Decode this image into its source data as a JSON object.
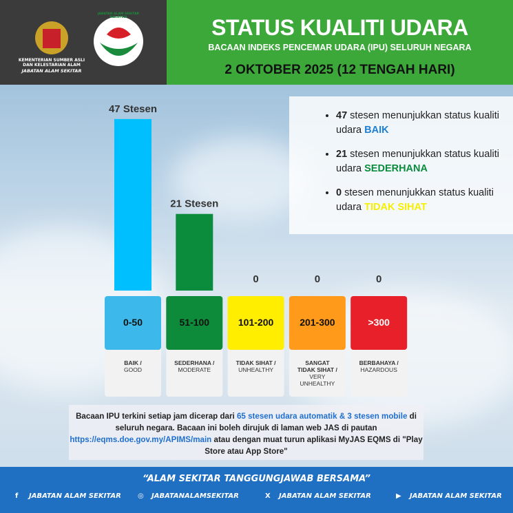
{
  "header": {
    "ministry": "KEMENTERIAN SUMBER ASLI DAN KELESTARIAN ALAM",
    "department": "JABATAN ALAM SEKITAR",
    "logo_text": "JABATAN ALAM SEKITAR MALAYSIA",
    "title": "STATUS KUALITI UDARA",
    "subtitle": "BACAAN INDEKS PENCEMAR UDARA (IPU) SELURUH NEGARA",
    "date": "2 OKTOBER 2025 (12 TENGAH HARI)"
  },
  "chart_data": {
    "type": "bar",
    "categories": [
      "0-50",
      "51-100",
      "101-200",
      "201-300",
      ">300"
    ],
    "values": [
      47,
      21,
      0,
      0,
      0
    ],
    "value_labels": [
      "47 Stesen",
      "21 Stesen",
      "0",
      "0",
      "0"
    ],
    "colors": [
      "#00bfff",
      "#0a8c3c",
      "#ffee00",
      "#ff9a1a",
      "#e8202a"
    ],
    "category_labels": [
      {
        "ms": "BAIK /",
        "en": "GOOD"
      },
      {
        "ms": "SEDERHANA /",
        "en": "MODERATE"
      },
      {
        "ms": "TIDAK SIHAT /",
        "en": "UNHEALTHY"
      },
      {
        "ms": "SANGAT TIDAK SIHAT /",
        "en": "VERY UNHEALTHY"
      },
      {
        "ms": "BERBAHAYA /",
        "en": "HAZARDOUS"
      }
    ],
    "card_colors": [
      "#3db8ea",
      "#0e8a3b",
      "#ffee00",
      "#ff9a1a",
      "#e8202a"
    ]
  },
  "summary": [
    {
      "count": 47,
      "text": "stesen menunjukkan status kualiti udara",
      "status": "BAIK",
      "color": "#1f7fd0"
    },
    {
      "count": 21,
      "text": "stesen menunjukkan status kualiti udara",
      "status": "SEDERHANA",
      "color": "#0a8c3c"
    },
    {
      "count": 0,
      "text": "stesen menunjukkan status kualiti udara",
      "status": "TIDAK SIHAT",
      "color": "#f5ef00"
    }
  ],
  "note": [
    {
      "text": "Bacaan IPU terkini setiap jam dicerap dari ",
      "color": "#222"
    },
    {
      "text": "65 stesen udara automatik & 3 stesen mobile",
      "color": "#1f6fd0"
    },
    {
      "text": " di seluruh negara. Bacaan ini boleh dirujuk di laman web JAS di pautan ",
      "color": "#222"
    },
    {
      "text": "https://eqms.doe.gov.my/APIMS/main",
      "color": "#1f6fd0"
    },
    {
      "text": " atau dengan muat turun aplikasi MyJAS EQMS di \"Play Store atau App Store\"",
      "color": "#222"
    }
  ],
  "footer": {
    "slogan": "“ALAM SEKITAR TANGGUNGJAWAB BERSAMA”",
    "socials": [
      "JABATAN ALAM SEKITAR",
      "JABATANALAMSEKITAR",
      "JABATAN ALAM SEKITAR",
      "JABATAN ALAM SEKITAR"
    ]
  }
}
